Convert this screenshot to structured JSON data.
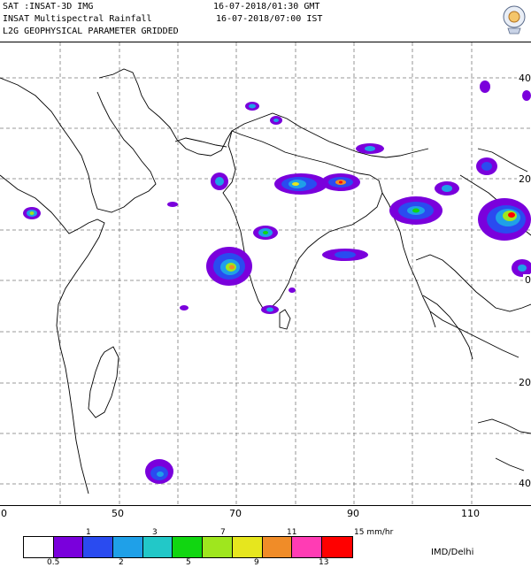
{
  "header": {
    "satellite": "SAT :INSAT-3D IMG",
    "product": "INSAT Multispectral Rainfall",
    "level": "L2G GEOPHYSICAL PARAMETER GRIDDED",
    "time_gmt": "16-07-2018/01:30 GMT",
    "time_ist": "16-07-2018/07:00 IST"
  },
  "map": {
    "lon_labels": [
      "0",
      "50",
      "70",
      "90",
      "110"
    ],
    "lat_labels": [
      "40",
      "20",
      "0",
      "20",
      "40"
    ],
    "grid_color": "#7a7a7a",
    "coast_color": "#000000"
  },
  "legend": {
    "colors": [
      "#ffffff",
      "#7a00dc",
      "#2a4bf0",
      "#1fa0e8",
      "#22c8c8",
      "#11d611",
      "#9fe61e",
      "#e6e61e",
      "#f08c28",
      "#ff3cb4",
      "#ff0000"
    ],
    "labels_top": [
      "1",
      "3",
      "7",
      "11",
      "15 mm/hr"
    ],
    "labels_bottom": [
      "0.5",
      "2",
      "5",
      "9",
      "13"
    ],
    "credit": "IMD/Delhi"
  },
  "logo": {
    "icon": "imd-emblem-icon"
  }
}
